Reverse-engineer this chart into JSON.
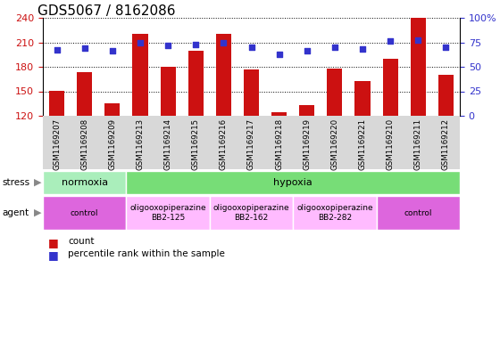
{
  "title": "GDS5067 / 8162086",
  "samples": [
    "GSM1169207",
    "GSM1169208",
    "GSM1169209",
    "GSM1169213",
    "GSM1169214",
    "GSM1169215",
    "GSM1169216",
    "GSM1169217",
    "GSM1169218",
    "GSM1169219",
    "GSM1169220",
    "GSM1169221",
    "GSM1169210",
    "GSM1169211",
    "GSM1169212"
  ],
  "counts": [
    151,
    173,
    135,
    220,
    180,
    200,
    220,
    177,
    124,
    133,
    178,
    163,
    190,
    240,
    170
  ],
  "percentiles": [
    67,
    69,
    66,
    75,
    72,
    73,
    75,
    70,
    63,
    66,
    70,
    68,
    76,
    77,
    70
  ],
  "ylim_left": [
    120,
    240
  ],
  "ylim_right": [
    0,
    100
  ],
  "yticks_left": [
    120,
    150,
    180,
    210,
    240
  ],
  "yticks_right": [
    0,
    25,
    50,
    75,
    100
  ],
  "bar_color": "#cc1111",
  "dot_color": "#3333cc",
  "title_fontsize": 11,
  "stress_groups": [
    {
      "label": "normoxia",
      "start": 0,
      "end": 3,
      "color": "#aaeebb"
    },
    {
      "label": "hypoxia",
      "start": 3,
      "end": 15,
      "color": "#77dd77"
    }
  ],
  "agent_groups": [
    {
      "label": "control",
      "start": 0,
      "end": 3,
      "color": "#dd66dd"
    },
    {
      "label": "oligooxopiperazine\nBB2-125",
      "start": 3,
      "end": 6,
      "color": "#ffbbff"
    },
    {
      "label": "oligooxopiperazine\nBB2-162",
      "start": 6,
      "end": 9,
      "color": "#ffbbff"
    },
    {
      "label": "oligooxopiperazine\nBB2-282",
      "start": 9,
      "end": 12,
      "color": "#ffbbff"
    },
    {
      "label": "control",
      "start": 12,
      "end": 15,
      "color": "#dd66dd"
    }
  ]
}
